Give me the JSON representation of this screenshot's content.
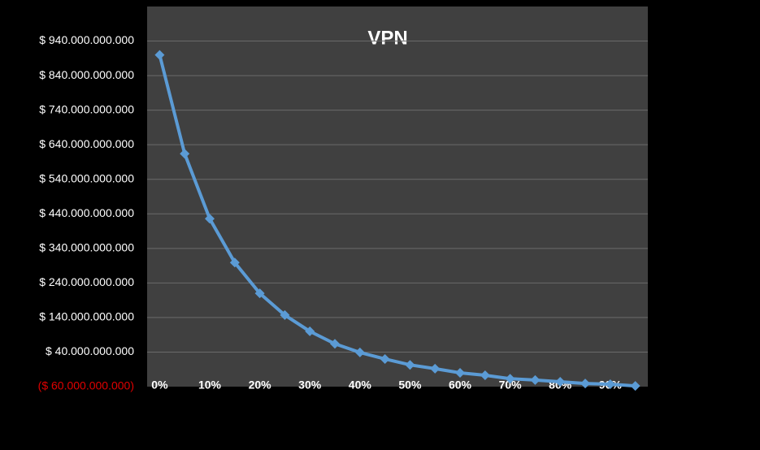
{
  "chart_data": {
    "type": "line",
    "title": "VPN",
    "categories": [
      "0%",
      null,
      "10%",
      null,
      "20%",
      null,
      "30%",
      null,
      "40%",
      null,
      "50%",
      null,
      "60%",
      null,
      "70%",
      null,
      "80%",
      null,
      "90%",
      null
    ],
    "series": [
      {
        "name": "VPN",
        "color": "#5b9bd5",
        "values": [
          900000000000,
          614000000000,
          426000000000,
          299000000000,
          210000000000,
          147000000000,
          100000000000,
          64000000000,
          39000000000,
          20000000000,
          3000000000,
          -8000000000,
          -20000000000,
          -27000000000,
          -37000000000,
          -41000000000,
          -46000000000,
          -51000000000,
          -53000000000,
          -58000000000
        ]
      }
    ],
    "ylim": [
      -60000000000,
      1040000000000
    ],
    "yticks": [
      {
        "value": -60000000000,
        "label": "($ 60.000.000.000)"
      },
      {
        "value": 40000000000,
        "label": "$ 40.000.000.000"
      },
      {
        "value": 140000000000,
        "label": "$ 140.000.000.000"
      },
      {
        "value": 240000000000,
        "label": "$ 240.000.000.000"
      },
      {
        "value": 340000000000,
        "label": "$ 340.000.000.000"
      },
      {
        "value": 440000000000,
        "label": "$ 440.000.000.000"
      },
      {
        "value": 540000000000,
        "label": "$ 540.000.000.000"
      },
      {
        "value": 640000000000,
        "label": "$ 640.000.000.000"
      },
      {
        "value": 740000000000,
        "label": "$ 740.000.000.000"
      },
      {
        "value": 840000000000,
        "label": "$ 840.000.000.000"
      },
      {
        "value": 940000000000,
        "label": "$ 940.000.000.000"
      }
    ],
    "grid": true
  }
}
